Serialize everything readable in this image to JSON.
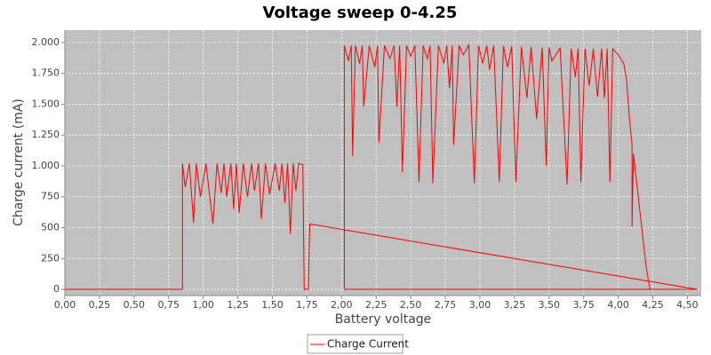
{
  "chart_data": {
    "type": "line",
    "title": "Voltage sweep 0-4.25",
    "x_label": "Battery voltage",
    "y_label": "Charge current (mA)",
    "xlim": [
      0,
      4.6
    ],
    "ylim": [
      -50,
      2100
    ],
    "xticks": [
      {
        "value": 0,
        "label": "0,00"
      },
      {
        "value": 0.25,
        "label": "0,25"
      },
      {
        "value": 0.5,
        "label": "0,50"
      },
      {
        "value": 0.75,
        "label": "0,75"
      },
      {
        "value": 1,
        "label": "1,00"
      },
      {
        "value": 1.25,
        "label": "1,25"
      },
      {
        "value": 1.5,
        "label": "1,50"
      },
      {
        "value": 1.75,
        "label": "1,75"
      },
      {
        "value": 2,
        "label": "2,00"
      },
      {
        "value": 2.25,
        "label": "2,25"
      },
      {
        "value": 2.5,
        "label": "2,50"
      },
      {
        "value": 2.75,
        "label": "2,75"
      },
      {
        "value": 3,
        "label": "3,00"
      },
      {
        "value": 3.25,
        "label": "3,25"
      },
      {
        "value": 3.5,
        "label": "3,50"
      },
      {
        "value": 3.75,
        "label": "3,75"
      },
      {
        "value": 4,
        "label": "4,00"
      },
      {
        "value": 4.25,
        "label": "4,25"
      },
      {
        "value": 4.5,
        "label": "4,50"
      }
    ],
    "yticks": [
      0,
      250,
      500,
      750,
      {
        "value": 1000,
        "label": "1.000"
      },
      {
        "value": 1250,
        "label": "1.250"
      },
      {
        "value": 1500,
        "label": "1.500"
      },
      {
        "value": 1750,
        "label": "1.750"
      },
      {
        "value": 2000,
        "label": "2.000"
      }
    ],
    "grid": true,
    "legend": "bottom",
    "series": [
      {
        "name": "Charge Current",
        "color": "#ff0000",
        "x": [
          0,
          0.85,
          0.85,
          0.87,
          0.9,
          0.93,
          0.95,
          0.98,
          1.02,
          1.07,
          1.1,
          1.13,
          1.15,
          1.17,
          1.2,
          1.22,
          1.24,
          1.26,
          1.29,
          1.32,
          1.35,
          1.37,
          1.4,
          1.42,
          1.45,
          1.48,
          1.52,
          1.55,
          1.57,
          1.59,
          1.61,
          1.63,
          1.65,
          1.67,
          1.69,
          1.72,
          1.73,
          1.76,
          1.77,
          4.57,
          2.02,
          2.02,
          2.05,
          2.07,
          2.08,
          2.1,
          2.13,
          2.15,
          2.16,
          2.2,
          2.24,
          2.26,
          2.27,
          2.31,
          2.35,
          2.38,
          2.4,
          2.42,
          2.44,
          2.47,
          2.5,
          2.53,
          2.56,
          2.59,
          2.62,
          2.64,
          2.66,
          2.7,
          2.74,
          2.76,
          2.78,
          2.8,
          2.81,
          2.85,
          2.88,
          2.92,
          2.96,
          2.99,
          3.02,
          3.05,
          3.07,
          3.1,
          3.14,
          3.17,
          3.2,
          3.23,
          3.26,
          3.3,
          3.34,
          3.37,
          3.41,
          3.45,
          3.48,
          3.5,
          3.52,
          3.58,
          3.63,
          3.66,
          3.69,
          3.71,
          3.73,
          3.76,
          3.79,
          3.82,
          3.85,
          3.88,
          3.9,
          3.92,
          3.94,
          3.96,
          4.0,
          4.04,
          4.06,
          4.08,
          4.1,
          4.1,
          4.11,
          4.14,
          4.17,
          4.2,
          4.22,
          4.23,
          4.57
        ],
        "values": [
          0,
          0,
          1020,
          830,
          1020,
          540,
          1020,
          750,
          1020,
          530,
          1020,
          780,
          1020,
          750,
          1020,
          650,
          1020,
          620,
          1020,
          750,
          1020,
          800,
          1020,
          570,
          1020,
          770,
          1020,
          800,
          1020,
          700,
          1020,
          450,
          1020,
          800,
          1020,
          1010,
          0,
          0,
          530,
          0,
          0,
          1975,
          1850,
          1975,
          1080,
          1975,
          1830,
          1975,
          1480,
          1975,
          1800,
          1975,
          1190,
          1975,
          1870,
          1975,
          1480,
          1975,
          950,
          1975,
          1890,
          1975,
          870,
          1975,
          1870,
          1975,
          860,
          1975,
          1830,
          1975,
          1630,
          1975,
          1170,
          1975,
          1900,
          1980,
          860,
          1975,
          1830,
          1975,
          1780,
          1975,
          870,
          1970,
          1800,
          1970,
          870,
          1965,
          1550,
          1965,
          1380,
          1960,
          1000,
          1960,
          1850,
          1955,
          850,
          1950,
          1720,
          1950,
          870,
          1950,
          1650,
          1950,
          1560,
          1950,
          1550,
          1950,
          870,
          1950,
          1900,
          1830,
          1700,
          1400,
          1170,
          510,
          1100,
          800,
          500,
          200,
          60,
          0,
          0
        ]
      }
    ]
  }
}
